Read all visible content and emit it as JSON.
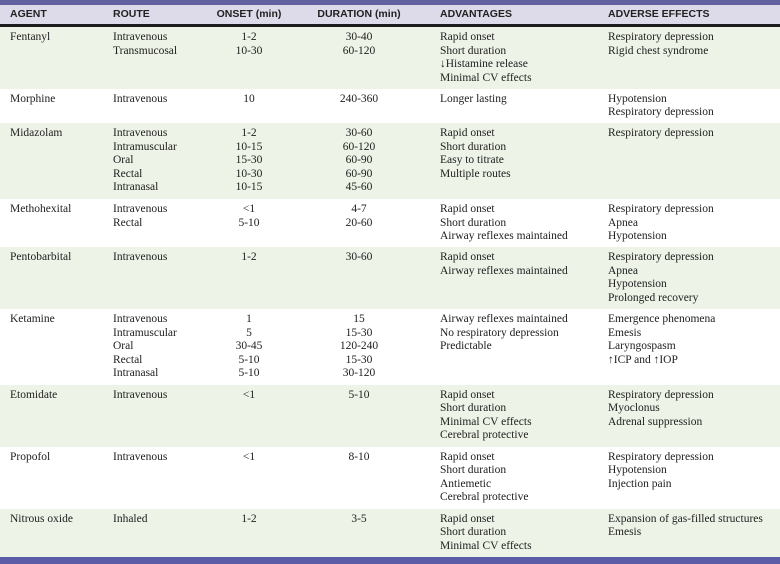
{
  "colors": {
    "top_bar": "#6461a0",
    "bottom_bar": "#5c5ba6",
    "header_bg": "#dddbe9",
    "shaded_row_bg": "#edf3e7",
    "plain_row_bg": "#ffffff",
    "rule": "#1c1c1c",
    "text": "#212121"
  },
  "table": {
    "headers": [
      "AGENT",
      "ROUTE",
      "ONSET (min)",
      "DURATION (min)",
      "ADVANTAGES",
      "ADVERSE EFFECTS"
    ],
    "rows": [
      {
        "agent": "Fentanyl",
        "routes": [
          "Intravenous",
          "Transmucosal"
        ],
        "onset": [
          "1-2",
          "10-30"
        ],
        "duration": [
          "30-40",
          "60-120"
        ],
        "advantages": [
          "Rapid onset",
          "Short duration",
          "↓Histamine release",
          "Minimal CV effects"
        ],
        "adverse": [
          "Respiratory depression",
          "Rigid chest syndrome"
        ],
        "shaded": true
      },
      {
        "agent": "Morphine",
        "routes": [
          "Intravenous"
        ],
        "onset": [
          "10"
        ],
        "duration": [
          "240-360"
        ],
        "advantages": [
          "Longer lasting"
        ],
        "adverse": [
          "Hypotension",
          "Respiratory depression"
        ],
        "shaded": false
      },
      {
        "agent": "Midazolam",
        "routes": [
          "Intravenous",
          "Intramuscular",
          "Oral",
          "Rectal",
          "Intranasal"
        ],
        "onset": [
          "1-2",
          "10-15",
          "15-30",
          "10-30",
          "10-15"
        ],
        "duration": [
          "30-60",
          "60-120",
          "60-90",
          "60-90",
          "45-60"
        ],
        "advantages": [
          "Rapid onset",
          "Short duration",
          "Easy to titrate",
          "Multiple routes"
        ],
        "adverse": [
          "Respiratory depression"
        ],
        "shaded": true
      },
      {
        "agent": "Methohexital",
        "routes": [
          "Intravenous",
          "Rectal"
        ],
        "onset": [
          "<1",
          "5-10"
        ],
        "duration": [
          "4-7",
          "20-60"
        ],
        "advantages": [
          "Rapid onset",
          "Short duration",
          "Airway reflexes maintained"
        ],
        "adverse": [
          "Respiratory depression",
          "Apnea",
          "Hypotension"
        ],
        "shaded": false
      },
      {
        "agent": "Pentobarbital",
        "routes": [
          "Intravenous"
        ],
        "onset": [
          "1-2"
        ],
        "duration": [
          "30-60"
        ],
        "advantages": [
          "Rapid onset",
          "Airway reflexes maintained"
        ],
        "adverse": [
          "Respiratory depression",
          "Apnea",
          "Hypotension",
          "Prolonged recovery"
        ],
        "shaded": true
      },
      {
        "agent": "Ketamine",
        "routes": [
          "Intravenous",
          "Intramuscular",
          "Oral",
          "Rectal",
          "Intranasal"
        ],
        "onset": [
          "1",
          "5",
          "30-45",
          "5-10",
          "5-10"
        ],
        "duration": [
          "15",
          "15-30",
          "120-240",
          "15-30",
          "30-120"
        ],
        "advantages": [
          "Airway reflexes maintained",
          "No respiratory depression",
          "Predictable"
        ],
        "adverse": [
          "Emergence phenomena",
          "Emesis",
          "Laryngospasm",
          "↑ICP and ↑IOP"
        ],
        "shaded": false
      },
      {
        "agent": "Etomidate",
        "routes": [
          "Intravenous"
        ],
        "onset": [
          "<1"
        ],
        "duration": [
          "5-10"
        ],
        "advantages": [
          "Rapid onset",
          "Short duration",
          "Minimal CV effects",
          "Cerebral protective"
        ],
        "adverse": [
          "Respiratory depression",
          "Myoclonus",
          "Adrenal suppression"
        ],
        "shaded": true
      },
      {
        "agent": "Propofol",
        "routes": [
          "Intravenous"
        ],
        "onset": [
          "<1"
        ],
        "duration": [
          "8-10"
        ],
        "advantages": [
          "Rapid onset",
          "Short duration",
          "Antiemetic",
          "Cerebral protective"
        ],
        "adverse": [
          "Respiratory depression",
          "Hypotension",
          "Injection pain"
        ],
        "shaded": false
      },
      {
        "agent": "Nitrous oxide",
        "routes": [
          "Inhaled"
        ],
        "onset": [
          "1-2"
        ],
        "duration": [
          "3-5"
        ],
        "advantages": [
          "Rapid onset",
          "Short duration",
          "Minimal CV effects"
        ],
        "adverse": [
          "Expansion of gas-filled structures",
          "Emesis"
        ],
        "shaded": true
      }
    ]
  }
}
